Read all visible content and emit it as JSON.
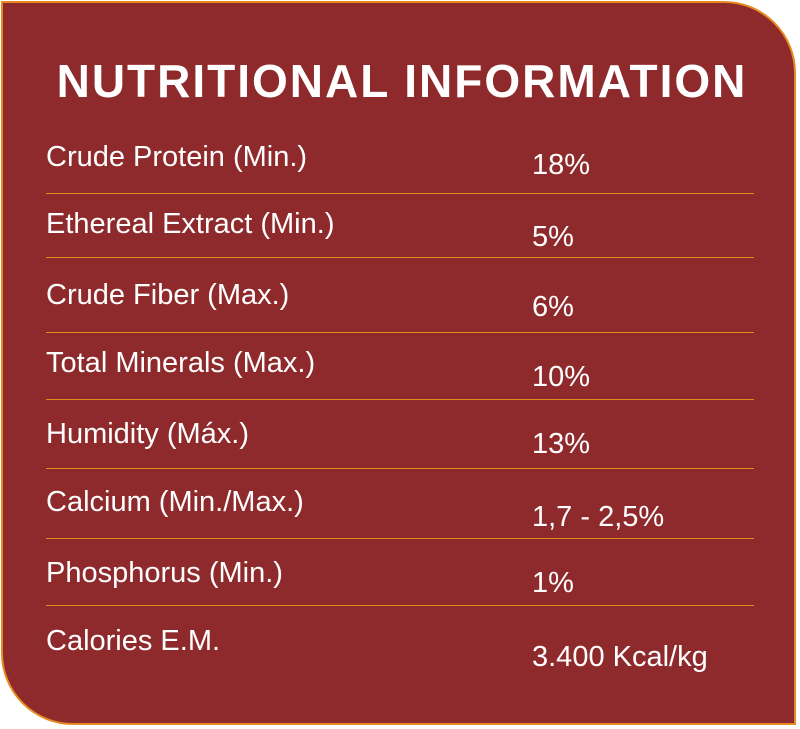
{
  "title": "NUTRITIONAL INFORMATION",
  "rows": [
    {
      "label": "Crude Protein (Min.)",
      "value": "18%"
    },
    {
      "label": "Ethereal Extract (Min.)",
      "value": "5%"
    },
    {
      "label": "Crude Fiber (Max.)",
      "value": "6%"
    },
    {
      "label": "Total Minerals (Max.)",
      "value": "10%"
    },
    {
      "label": "Humidity (Máx.)",
      "value": "13%"
    },
    {
      "label": "Calcium (Min./Max.)",
      "value": "1,7 - 2,5%"
    },
    {
      "label": "Phosphorus (Min.)",
      "value": "1%"
    },
    {
      "label": "Calories E.M.",
      "value": "3.400 Kcal/kg"
    }
  ],
  "colors": {
    "panel_background": "#8f2a2c",
    "accent_border": "#e58a1f",
    "text": "#ffffff"
  }
}
